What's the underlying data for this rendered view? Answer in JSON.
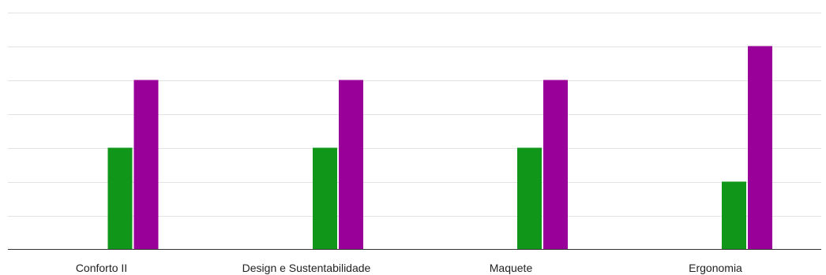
{
  "chart_data": {
    "type": "bar",
    "categories": [
      "Conforto II",
      "Design e Sustentabilidade",
      "Maquete",
      "Ergonomia"
    ],
    "series": [
      {
        "color": "#109618",
        "values": [
          3,
          3,
          3,
          2
        ]
      },
      {
        "color": "#990099",
        "values": [
          5,
          5,
          5,
          6
        ]
      }
    ],
    "ylim": [
      0,
      7
    ],
    "grid": true,
    "title": "",
    "xlabel": "",
    "ylabel": ""
  }
}
